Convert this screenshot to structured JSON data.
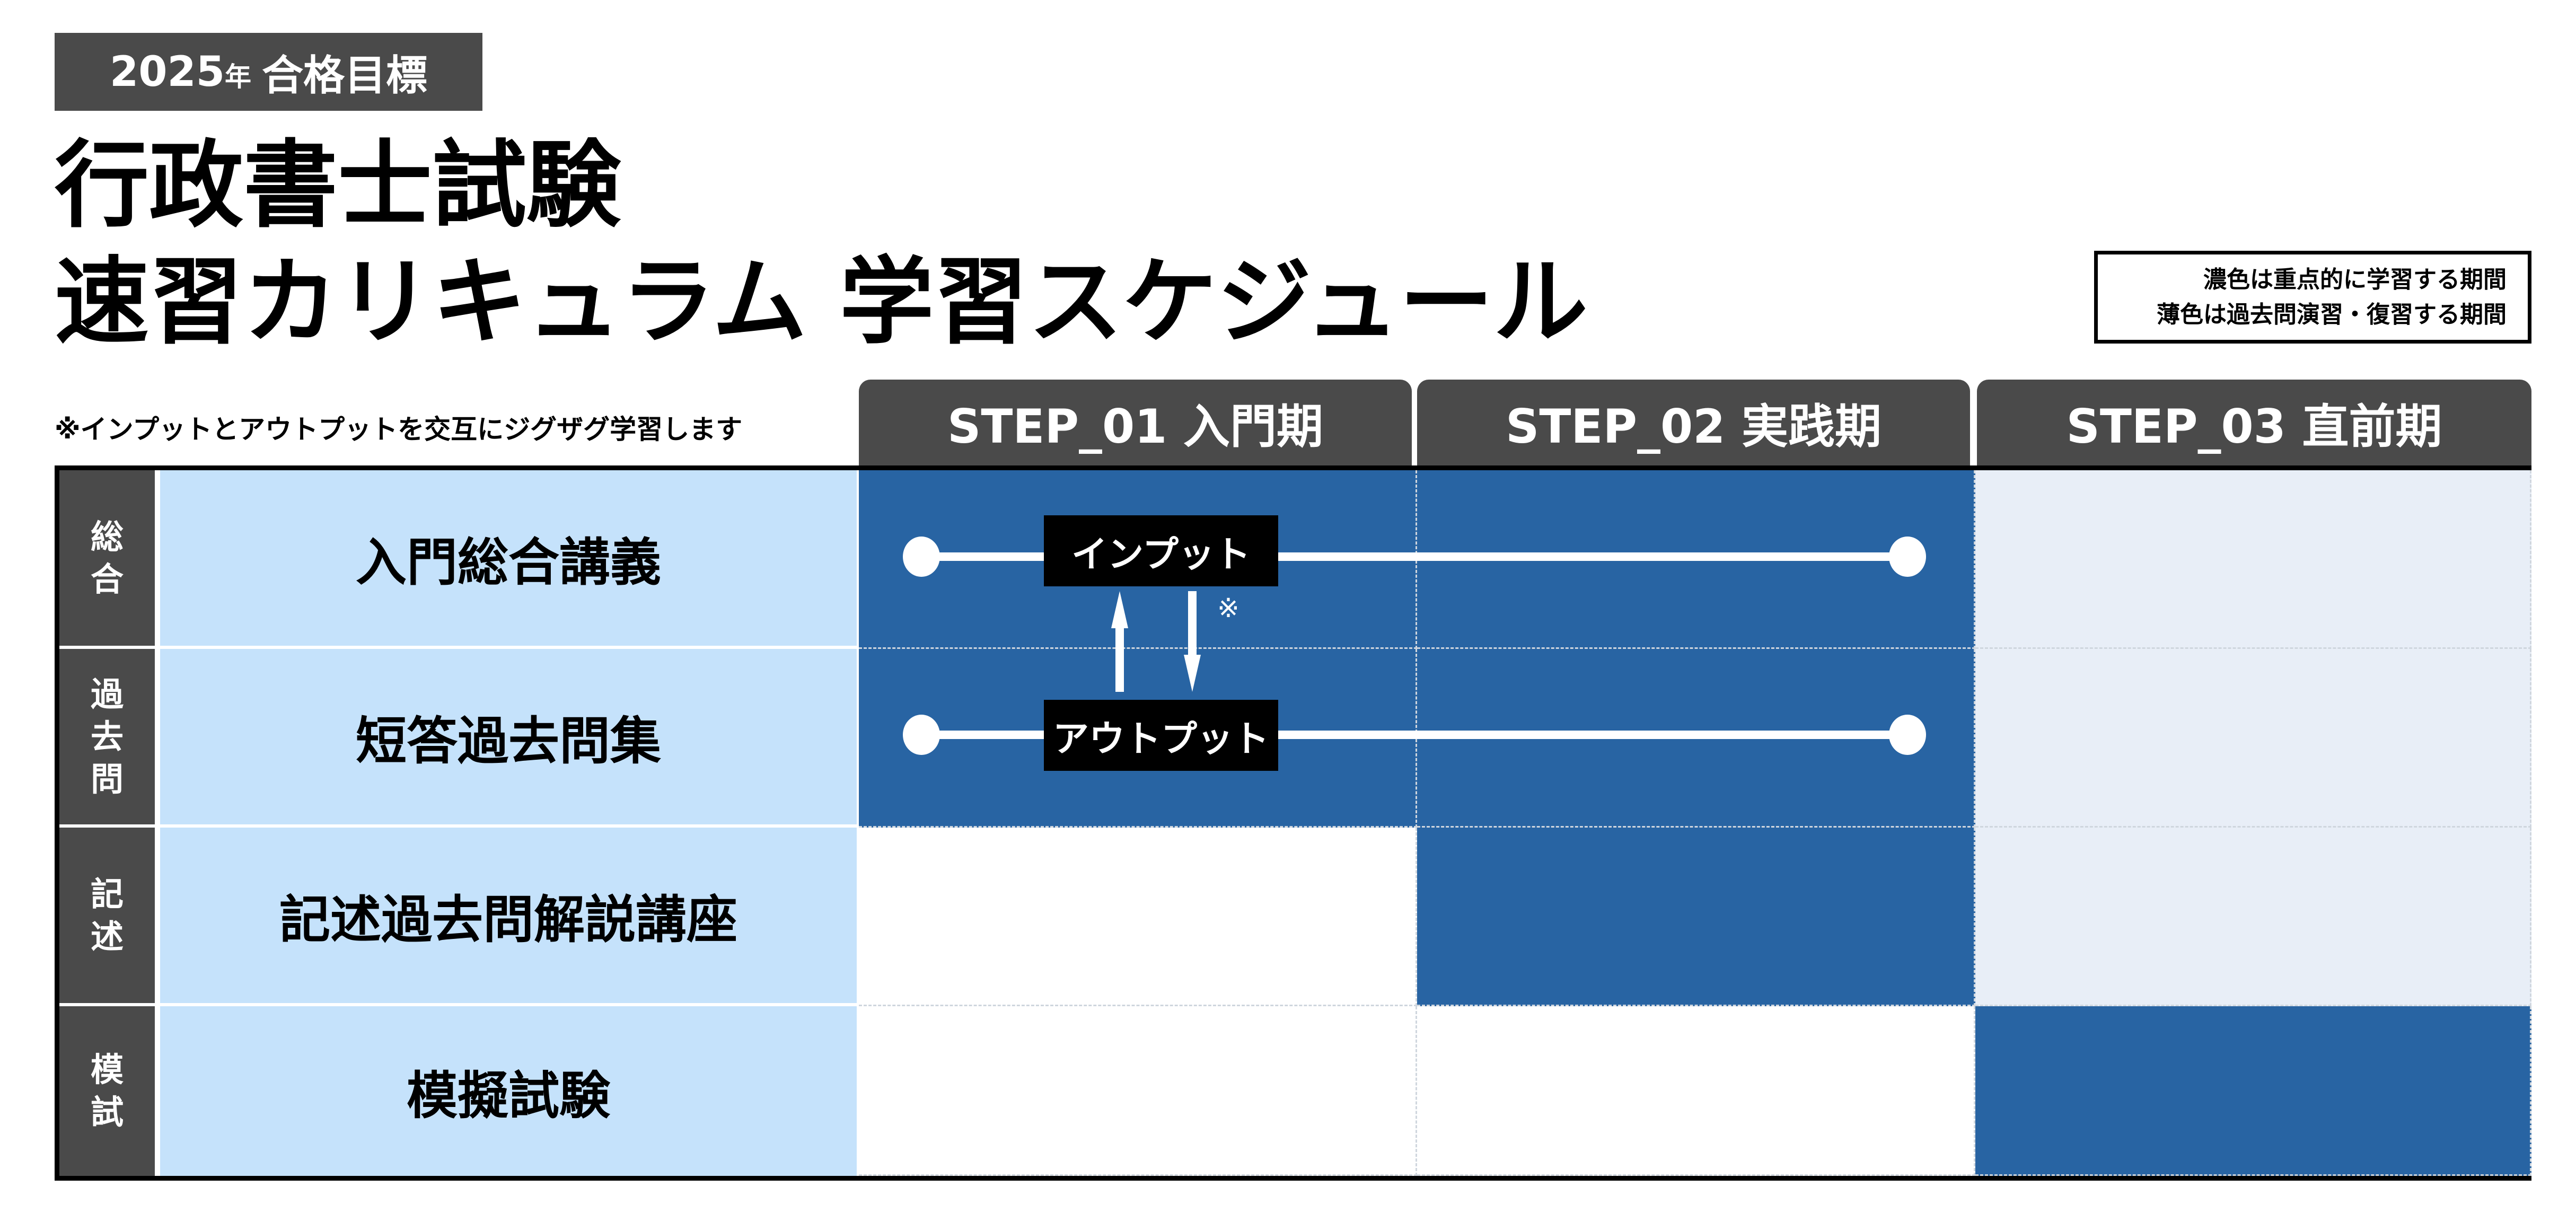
{
  "badge": {
    "year": "2025",
    "year_suffix": "年",
    "goal": "合格目標"
  },
  "title": {
    "line1": "行政書士試験",
    "line2": "速習カリキュラム 学習スケジュール"
  },
  "legend": {
    "dark": "濃色は重点的に学習する期間",
    "light": "薄色は過去問演習・復習する期間"
  },
  "note": "※インプットとアウトプットを交互にジグザグ学習します",
  "steps": [
    "STEP_01 入門期",
    "STEP_02 実践期",
    "STEP_03 直前期"
  ],
  "rows": [
    {
      "side": [
        "総",
        "合"
      ],
      "label": "入門総合講義",
      "fills": [
        "dark",
        "dark",
        "light"
      ]
    },
    {
      "side": [
        "過",
        "去",
        "問"
      ],
      "label": "短答過去問集",
      "fills": [
        "dark",
        "dark",
        "light"
      ]
    },
    {
      "side": [
        "記",
        "述"
      ],
      "label": "記述過去問解説講座",
      "fills": [
        "white",
        "dark",
        "light"
      ]
    },
    {
      "side": [
        "模",
        "試"
      ],
      "label": "模擬試験",
      "fills": [
        "white",
        "white",
        "dark"
      ]
    }
  ],
  "flow": {
    "input": "インプット",
    "output": "アウトプット",
    "mark": "※",
    "icons": [
      "arrow-up-icon",
      "arrow-down-icon"
    ]
  },
  "colors": {
    "dark": "#2864a3",
    "light": "#e8eef7",
    "label": "#c5e2fb",
    "header": "#4a4a4a"
  }
}
